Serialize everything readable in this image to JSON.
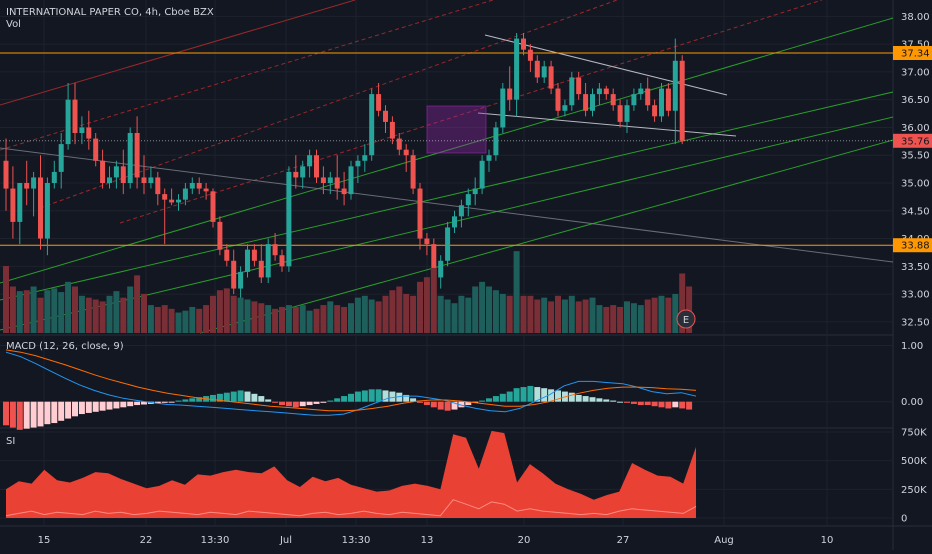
{
  "header": {
    "symbol_line": "INTERNATIONAL PAPER CO, 4h, Cboe BZX",
    "volume_label": "Vol"
  },
  "colors": {
    "bg": "#131722",
    "up": "#26a69a",
    "down": "#ef5350",
    "grid": "#1e222d",
    "axis_text": "#d1d4dc"
  },
  "chart_data": [
    {
      "type": "candlestick",
      "title": "INTERNATIONAL PAPER CO, 4h, Cboe BZX",
      "ylim": [
        32.3,
        38.15
      ],
      "price_ticks": [
        "38.00",
        "37.50",
        "37.00",
        "36.50",
        "36.00",
        "35.50",
        "35.00",
        "34.50",
        "34.00",
        "33.50",
        "33.00",
        "32.50"
      ],
      "price_labels": [
        {
          "text": "37.34",
          "value": 37.34,
          "color": "#ff9800"
        },
        {
          "text": "35.76",
          "value": 35.76,
          "color": "#ef5350"
        },
        {
          "text": "33.88",
          "value": 33.88,
          "color": "#ff9800"
        }
      ],
      "horizontal_lines": [
        37.34,
        33.88
      ],
      "ohlc": [
        [
          35.4,
          35.8,
          34.5,
          34.9
        ],
        [
          34.9,
          35.3,
          34.0,
          34.3
        ],
        [
          34.3,
          35.0,
          33.9,
          35.0
        ],
        [
          35.0,
          35.4,
          34.6,
          34.9
        ],
        [
          34.9,
          35.2,
          34.4,
          35.1
        ],
        [
          35.1,
          35.5,
          33.8,
          34.0
        ],
        [
          34.0,
          35.1,
          33.7,
          35.0
        ],
        [
          35.0,
          35.4,
          34.9,
          35.2
        ],
        [
          35.2,
          35.9,
          34.9,
          35.7
        ],
        [
          35.7,
          36.8,
          35.6,
          36.5
        ],
        [
          36.5,
          36.8,
          35.7,
          35.9
        ],
        [
          35.9,
          36.2,
          35.7,
          36.0
        ],
        [
          36.0,
          36.3,
          35.6,
          35.8
        ],
        [
          35.8,
          35.9,
          35.3,
          35.4
        ],
        [
          35.4,
          35.6,
          34.9,
          35.0
        ],
        [
          35.0,
          35.3,
          34.9,
          35.1
        ],
        [
          35.1,
          35.4,
          34.9,
          35.3
        ],
        [
          35.3,
          35.6,
          34.8,
          35.0
        ],
        [
          35.0,
          36.0,
          34.9,
          35.9
        ],
        [
          35.9,
          36.2,
          34.9,
          35.1
        ],
        [
          35.1,
          35.5,
          34.8,
          35.0
        ],
        [
          35.0,
          35.3,
          34.9,
          35.1
        ],
        [
          35.1,
          35.2,
          34.6,
          34.8
        ],
        [
          34.8,
          34.9,
          33.9,
          34.7
        ],
        [
          34.7,
          34.9,
          34.6,
          34.65
        ],
        [
          34.65,
          34.8,
          34.5,
          34.7
        ],
        [
          34.7,
          35.0,
          34.6,
          34.9
        ],
        [
          34.9,
          35.1,
          34.8,
          35.0
        ],
        [
          35.0,
          35.1,
          34.8,
          34.9
        ],
        [
          34.9,
          35.0,
          34.7,
          34.85
        ],
        [
          34.85,
          34.9,
          34.2,
          34.3
        ],
        [
          34.3,
          34.4,
          33.7,
          33.8
        ],
        [
          33.8,
          33.9,
          33.5,
          33.6
        ],
        [
          33.6,
          33.8,
          33.0,
          33.1
        ],
        [
          33.1,
          33.5,
          32.9,
          33.4
        ],
        [
          33.4,
          33.9,
          33.3,
          33.8
        ],
        [
          33.8,
          33.9,
          33.5,
          33.6
        ],
        [
          33.6,
          33.9,
          33.2,
          33.3
        ],
        [
          33.3,
          34.0,
          33.2,
          33.9
        ],
        [
          33.9,
          34.1,
          33.6,
          33.7
        ],
        [
          33.7,
          33.8,
          33.4,
          33.5
        ],
        [
          33.5,
          35.3,
          33.4,
          35.2
        ],
        [
          35.2,
          35.5,
          34.9,
          35.1
        ],
        [
          35.1,
          35.4,
          34.9,
          35.3
        ],
        [
          35.3,
          35.6,
          35.1,
          35.5
        ],
        [
          35.5,
          35.6,
          35.0,
          35.1
        ],
        [
          35.1,
          35.3,
          34.8,
          35.0
        ],
        [
          35.0,
          35.2,
          34.8,
          35.1
        ],
        [
          35.1,
          35.5,
          34.7,
          34.9
        ],
        [
          34.9,
          35.2,
          34.6,
          34.8
        ],
        [
          34.8,
          35.4,
          34.7,
          35.3
        ],
        [
          35.3,
          35.5,
          35.0,
          35.4
        ],
        [
          35.4,
          35.7,
          35.2,
          35.5
        ],
        [
          35.5,
          36.7,
          35.4,
          36.6
        ],
        [
          36.6,
          36.8,
          36.2,
          36.3
        ],
        [
          36.3,
          36.4,
          35.9,
          36.1
        ],
        [
          36.1,
          36.2,
          35.7,
          35.8
        ],
        [
          35.8,
          35.9,
          35.5,
          35.6
        ],
        [
          35.6,
          35.7,
          35.2,
          35.5
        ],
        [
          35.5,
          35.6,
          34.8,
          34.9
        ],
        [
          34.9,
          35.0,
          33.8,
          34.0
        ],
        [
          34.0,
          34.1,
          33.7,
          33.9
        ],
        [
          33.9,
          34.0,
          33.0,
          33.3
        ],
        [
          33.3,
          33.7,
          33.1,
          33.6
        ],
        [
          33.6,
          34.3,
          33.5,
          34.2
        ],
        [
          34.2,
          34.5,
          34.1,
          34.4
        ],
        [
          34.4,
          34.7,
          34.2,
          34.6
        ],
        [
          34.6,
          34.9,
          34.4,
          34.8
        ],
        [
          34.8,
          35.1,
          34.6,
          34.9
        ],
        [
          34.9,
          35.5,
          34.8,
          35.4
        ],
        [
          35.4,
          35.6,
          35.2,
          35.5
        ],
        [
          35.5,
          36.1,
          35.4,
          36.0
        ],
        [
          36.0,
          36.8,
          35.9,
          36.7
        ],
        [
          36.7,
          37.1,
          36.3,
          36.5
        ],
        [
          36.5,
          37.7,
          36.2,
          37.6
        ],
        [
          37.6,
          37.7,
          37.3,
          37.4
        ],
        [
          37.4,
          37.5,
          37.0,
          37.2
        ],
        [
          37.2,
          37.3,
          36.8,
          36.9
        ],
        [
          36.9,
          37.2,
          36.8,
          37.1
        ],
        [
          37.1,
          37.2,
          36.6,
          36.7
        ],
        [
          36.7,
          36.8,
          36.2,
          36.3
        ],
        [
          36.3,
          36.5,
          36.2,
          36.4
        ],
        [
          36.4,
          37.0,
          36.3,
          36.9
        ],
        [
          36.9,
          37.0,
          36.5,
          36.6
        ],
        [
          36.6,
          36.8,
          36.2,
          36.3
        ],
        [
          36.3,
          36.7,
          36.2,
          36.6
        ],
        [
          36.6,
          36.8,
          36.4,
          36.7
        ],
        [
          36.7,
          36.75,
          36.5,
          36.6
        ],
        [
          36.6,
          36.7,
          36.3,
          36.4
        ],
        [
          36.4,
          36.5,
          36.0,
          36.1
        ],
        [
          36.1,
          36.5,
          35.9,
          36.4
        ],
        [
          36.4,
          36.7,
          36.3,
          36.6
        ],
        [
          36.6,
          36.8,
          36.5,
          36.7
        ],
        [
          36.7,
          36.9,
          36.3,
          36.4
        ],
        [
          36.4,
          36.5,
          36.1,
          36.2
        ],
        [
          36.2,
          36.8,
          36.1,
          36.7
        ],
        [
          36.7,
          36.8,
          36.2,
          36.3
        ],
        [
          36.3,
          37.6,
          35.7,
          37.2
        ],
        [
          37.2,
          37.3,
          35.7,
          35.76
        ]
      ],
      "volume": [
        0.72,
        0.5,
        0.45,
        0.46,
        0.5,
        0.38,
        0.46,
        0.48,
        0.44,
        0.55,
        0.5,
        0.4,
        0.38,
        0.36,
        0.34,
        0.4,
        0.45,
        0.38,
        0.5,
        0.62,
        0.42,
        0.3,
        0.28,
        0.3,
        0.26,
        0.22,
        0.24,
        0.28,
        0.26,
        0.3,
        0.4,
        0.46,
        0.48,
        0.4,
        0.38,
        0.36,
        0.34,
        0.32,
        0.3,
        0.26,
        0.28,
        0.3,
        0.28,
        0.3,
        0.24,
        0.26,
        0.3,
        0.34,
        0.3,
        0.28,
        0.32,
        0.38,
        0.4,
        0.36,
        0.34,
        0.4,
        0.46,
        0.5,
        0.42,
        0.4,
        0.55,
        0.6,
        0.7,
        0.4,
        0.36,
        0.32,
        0.4,
        0.38,
        0.5,
        0.55,
        0.5,
        0.46,
        0.42,
        0.4,
        0.88,
        0.4,
        0.4,
        0.36,
        0.38,
        0.34,
        0.4,
        0.36,
        0.4,
        0.34,
        0.36,
        0.38,
        0.3,
        0.28,
        0.3,
        0.28,
        0.34,
        0.32,
        0.3,
        0.36,
        0.38,
        0.4,
        0.38,
        0.42,
        0.64,
        0.5
      ],
      "volume_marker": "E"
    },
    {
      "type": "macd",
      "title": "MACD (12, 26, close, 9)",
      "ylim": [
        -0.45,
        1.15
      ],
      "ticks": [
        "1.00",
        "0.00"
      ],
      "macd_line": [
        0.88,
        0.8,
        0.68,
        0.55,
        0.42,
        0.3,
        0.2,
        0.12,
        0.06,
        0.02,
        -0.02,
        -0.05,
        -0.06,
        -0.08,
        -0.1,
        -0.12,
        -0.14,
        -0.16,
        -0.18,
        -0.2,
        -0.22,
        -0.24,
        -0.24,
        -0.22,
        -0.14,
        -0.04,
        0.06,
        0.1,
        0.1,
        0.06,
        0.02,
        -0.06,
        -0.12,
        -0.16,
        -0.18,
        -0.12,
        0.0,
        0.12,
        0.28,
        0.36,
        0.36,
        0.34,
        0.32,
        0.26,
        0.18,
        0.14,
        0.16,
        0.1
      ],
      "signal_line": [
        0.92,
        0.88,
        0.82,
        0.74,
        0.66,
        0.57,
        0.48,
        0.4,
        0.33,
        0.26,
        0.2,
        0.15,
        0.11,
        0.07,
        0.04,
        0.01,
        -0.02,
        -0.05,
        -0.08,
        -0.1,
        -0.12,
        -0.14,
        -0.16,
        -0.16,
        -0.15,
        -0.12,
        -0.08,
        -0.03,
        0.01,
        0.03,
        0.03,
        0.01,
        -0.02,
        -0.05,
        -0.08,
        -0.08,
        -0.05,
        0.0,
        0.08,
        0.15,
        0.2,
        0.24,
        0.26,
        0.26,
        0.25,
        0.23,
        0.22,
        0.2
      ],
      "histogram": [
        -0.42,
        -0.46,
        -0.5,
        -0.48,
        -0.46,
        -0.44,
        -0.4,
        -0.38,
        -0.34,
        -0.3,
        -0.26,
        -0.22,
        -0.2,
        -0.18,
        -0.16,
        -0.14,
        -0.12,
        -0.1,
        -0.08,
        -0.06,
        -0.05,
        -0.04,
        -0.03,
        -0.02,
        -0.01,
        0.02,
        0.04,
        0.06,
        0.08,
        0.1,
        0.12,
        0.14,
        0.16,
        0.18,
        0.2,
        0.18,
        0.14,
        0.1,
        0.04,
        -0.02,
        -0.06,
        -0.08,
        -0.1,
        -0.08,
        -0.06,
        -0.04,
        -0.02,
        0.02,
        0.06,
        0.1,
        0.14,
        0.18,
        0.2,
        0.22,
        0.22,
        0.2,
        0.18,
        0.16,
        0.12,
        0.06,
        -0.02,
        -0.06,
        -0.1,
        -0.14,
        -0.16,
        -0.14,
        -0.1,
        -0.06,
        -0.02,
        0.02,
        0.06,
        0.1,
        0.14,
        0.18,
        0.24,
        0.26,
        0.28,
        0.26,
        0.24,
        0.22,
        0.2,
        0.18,
        0.16,
        0.12,
        0.1,
        0.08,
        0.06,
        0.04,
        0.02,
        0.0,
        -0.02,
        -0.04,
        -0.06,
        -0.06,
        -0.08,
        -0.1,
        -0.12,
        -0.1,
        -0.12,
        -0.14
      ]
    },
    {
      "type": "area",
      "title": "SI",
      "ylim": [
        0,
        750000
      ],
      "ticks": [
        "750K",
        "500K",
        "250K",
        "0"
      ],
      "values": [
        250000,
        320000,
        300000,
        420000,
        330000,
        310000,
        350000,
        400000,
        390000,
        340000,
        300000,
        260000,
        280000,
        330000,
        290000,
        380000,
        370000,
        400000,
        420000,
        400000,
        390000,
        450000,
        330000,
        270000,
        360000,
        320000,
        350000,
        290000,
        260000,
        230000,
        240000,
        280000,
        300000,
        280000,
        250000,
        730000,
        700000,
        430000,
        760000,
        740000,
        310000,
        470000,
        390000,
        300000,
        250000,
        210000,
        160000,
        200000,
        230000,
        480000,
        420000,
        370000,
        360000,
        300000,
        620000
      ],
      "baseline": [
        20000,
        40000,
        60000,
        30000,
        50000,
        40000,
        30000,
        60000,
        40000,
        50000,
        30000,
        40000,
        60000,
        50000,
        40000,
        30000,
        50000,
        40000,
        30000,
        60000,
        50000,
        40000,
        30000,
        20000,
        40000,
        50000,
        30000,
        40000,
        60000,
        40000,
        30000,
        50000,
        40000,
        30000,
        20000,
        160000,
        120000,
        80000,
        140000,
        120000,
        60000,
        80000,
        60000,
        50000,
        40000,
        30000,
        40000,
        30000,
        60000,
        80000,
        70000,
        60000,
        50000,
        40000,
        100000
      ]
    }
  ],
  "x_axis": {
    "labels": [
      "15",
      "22",
      "13:30",
      "Jul",
      "13:30",
      "13",
      "20",
      "27",
      "Aug",
      "10"
    ]
  }
}
